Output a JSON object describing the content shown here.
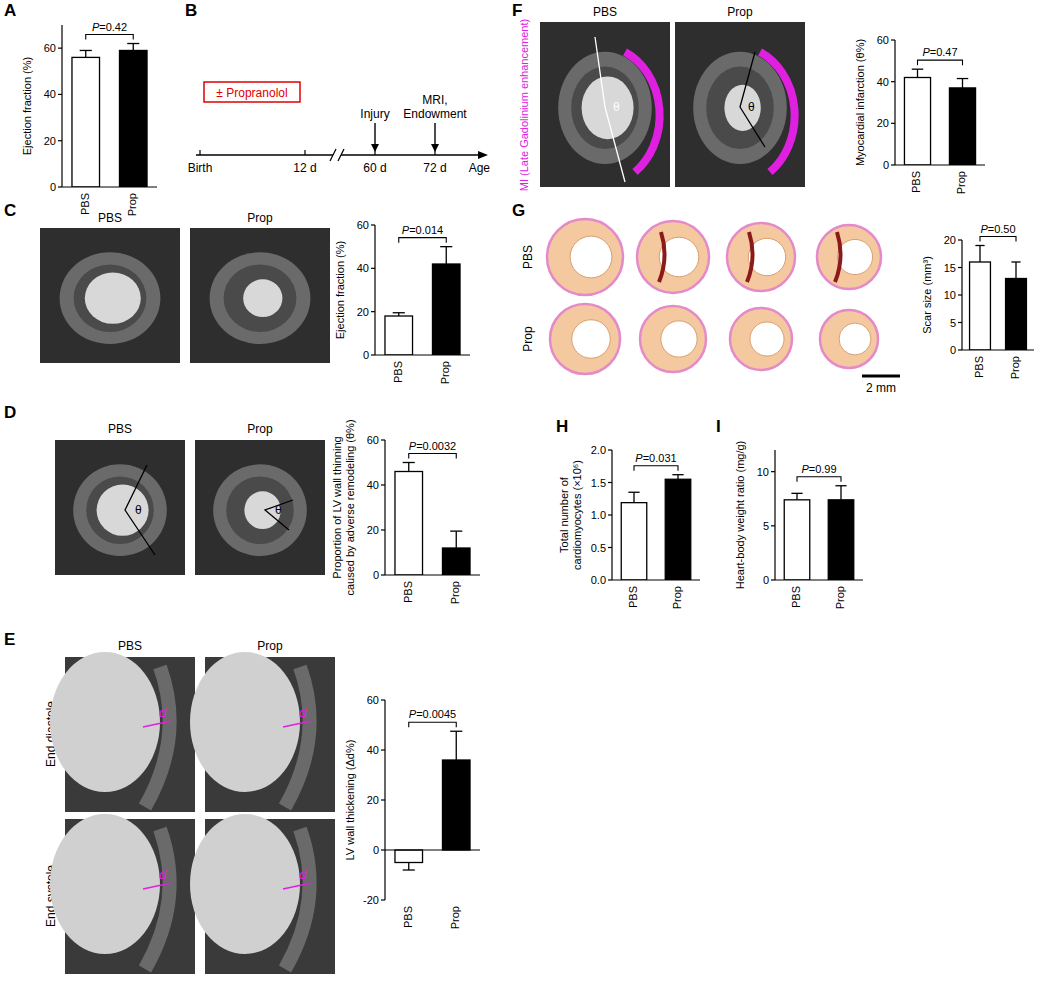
{
  "chart_data": [
    {
      "type": "bar",
      "categories": [
        "PBS",
        "Prop"
      ],
      "values": [
        56,
        59
      ],
      "errors": [
        3,
        3
      ],
      "colors": [
        "#ffffff",
        "#000000"
      ],
      "ylim": [
        0,
        70
      ],
      "yticks": [
        0,
        20,
        40,
        60
      ],
      "y_label": "Ejection fraction (%)",
      "annotations": [
        "P=0.42"
      ]
    },
    {
      "type": "bar",
      "categories": [
        "PBS",
        "Prop"
      ],
      "values": [
        18,
        42
      ],
      "errors": [
        1.5,
        8
      ],
      "colors": [
        "#ffffff",
        "#000000"
      ],
      "ylim": [
        0,
        60
      ],
      "yticks": [
        0,
        20,
        40,
        60
      ],
      "y_label": "Ejection fraction (%)",
      "annotations": [
        "P=0.014"
      ]
    },
    {
      "type": "bar",
      "categories": [
        "PBS",
        "Prop"
      ],
      "values": [
        46,
        12
      ],
      "errors": [
        4,
        7.5
      ],
      "colors": [
        "#ffffff",
        "#000000"
      ],
      "ylim": [
        0,
        60
      ],
      "yticks": [
        0,
        20,
        40,
        60
      ],
      "y_label": "Proportion of LV wall thinning caused by adverse remodeling (θ%)",
      "annotations": [
        "P=0.0032"
      ]
    },
    {
      "type": "bar",
      "categories": [
        "PBS",
        "Prop"
      ],
      "values": [
        -5,
        36
      ],
      "errors": [
        3,
        11.5
      ],
      "colors": [
        "#ffffff",
        "#000000"
      ],
      "ylim": [
        -20,
        60
      ],
      "yticks": [
        -20,
        0,
        20,
        40,
        60
      ],
      "y_label": "LV wall thickening (Δd%)",
      "annotations": [
        "P=0.0045"
      ]
    },
    {
      "type": "bar",
      "categories": [
        "PBS",
        "Prop"
      ],
      "values": [
        42,
        37
      ],
      "errors": [
        4,
        4.5
      ],
      "colors": [
        "#ffffff",
        "#000000"
      ],
      "ylim": [
        0,
        60
      ],
      "yticks": [
        0,
        20,
        40,
        60
      ],
      "y_label": "Myocardial infarction (θ%)",
      "annotations": [
        "P=0.47"
      ]
    },
    {
      "type": "bar",
      "categories": [
        "PBS",
        "Prop"
      ],
      "values": [
        16,
        13
      ],
      "errors": [
        3,
        3
      ],
      "colors": [
        "#ffffff",
        "#000000"
      ],
      "ylim": [
        0,
        20
      ],
      "yticks": [
        0,
        5,
        10,
        15,
        20
      ],
      "y_label": "Scar size (mm³)",
      "annotations": [
        "P=0.50"
      ]
    },
    {
      "type": "bar",
      "categories": [
        "PBS",
        "Prop"
      ],
      "values": [
        1.19,
        1.55
      ],
      "errors": [
        0.16,
        0.07
      ],
      "colors": [
        "#ffffff",
        "#000000"
      ],
      "ylim": [
        0,
        2
      ],
      "yticks": [
        {
          "value": 0,
          "label": "0.0"
        },
        {
          "value": 0.5,
          "label": "0.5"
        },
        {
          "value": 1,
          "label": "1.0"
        },
        {
          "value": 1.5,
          "label": "1.5"
        },
        {
          "value": 2,
          "label": "2.0"
        }
      ],
      "y_label": "Total number of cardiomyocytes (×10⁶)",
      "annotations": [
        "P=0.031"
      ]
    },
    {
      "type": "bar",
      "categories": [
        "PBS",
        "Prop"
      ],
      "values": [
        7.4,
        7.4
      ],
      "errors": [
        0.6,
        1.3
      ],
      "colors": [
        "#ffffff",
        "#000000"
      ],
      "ylim": [
        0,
        12
      ],
      "yticks": [
        0,
        5,
        10
      ],
      "y_label": "Heart-body weight ratio (mg/g)",
      "annotations": [
        "P=0.99"
      ]
    }
  ],
  "figure": {
    "letters": [
      "A",
      "B",
      "C",
      "D",
      "E",
      "F",
      "G",
      "H",
      "I"
    ],
    "timeline": {
      "treatment": "± Propranolol",
      "ticks": [
        "Birth",
        "12 d",
        "60 d",
        "72 d"
      ],
      "axis_label": "Age",
      "events": [
        {
          "at": 2,
          "label": [
            "Injury"
          ]
        },
        {
          "at": 3,
          "label": [
            "MRI,",
            "Endowment"
          ]
        }
      ]
    },
    "images": {
      "C": {
        "columns": [
          "PBS",
          "Prop"
        ]
      },
      "D": {
        "columns": [
          "PBS",
          "Prop"
        ],
        "symbol": "θ"
      },
      "E": {
        "columns": [
          "PBS",
          "Prop"
        ],
        "rows": [
          "End diastole",
          "End systole"
        ],
        "symbol": "d"
      },
      "F": {
        "columns": [
          "PBS",
          "Prop"
        ],
        "symbol": "θ",
        "side_label": "MI (Late Gadolinium enhancement)"
      },
      "G": {
        "rows": [
          "PBS",
          "Prop"
        ],
        "scale_bar": "2 mm"
      }
    }
  }
}
